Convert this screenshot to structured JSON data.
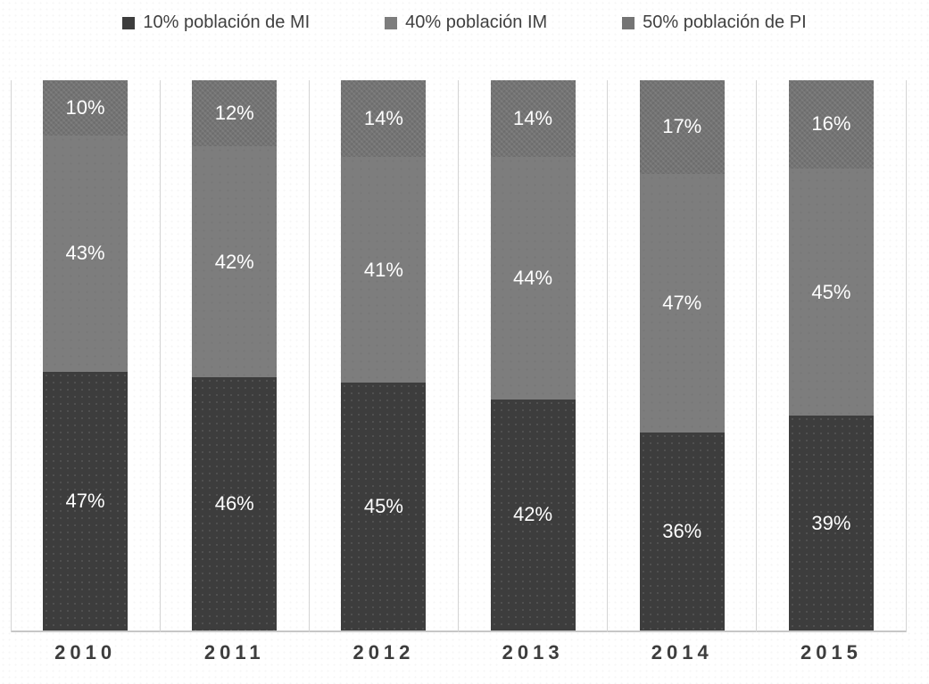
{
  "chart_data": {
    "type": "bar",
    "stacked": true,
    "percent_stacked": true,
    "title": "",
    "xlabel": "",
    "ylabel": "",
    "ylim": [
      0,
      100
    ],
    "grid": "vertical-category-lines",
    "legend_position": "top",
    "value_suffix": "%",
    "categories": [
      "2010",
      "2011",
      "2012",
      "2013",
      "2014",
      "2015"
    ],
    "series": [
      {
        "name": "10% población de MI",
        "color": "#3d3d3d",
        "values": [
          47,
          46,
          45,
          42,
          36,
          39
        ]
      },
      {
        "name": "40% población IM",
        "color": "#7d7d7d",
        "values": [
          43,
          42,
          41,
          44,
          47,
          45
        ]
      },
      {
        "name": "50% población de PI",
        "color": "#747474",
        "values": [
          10,
          12,
          14,
          14,
          17,
          16
        ]
      }
    ],
    "data_label_color": "#ffffff",
    "axis": {
      "line_color": "#c7c7c7",
      "gridline_color": "#d4d4d4",
      "category_label_color": "#3d3d3d",
      "legend_text_color": "#404040"
    }
  }
}
